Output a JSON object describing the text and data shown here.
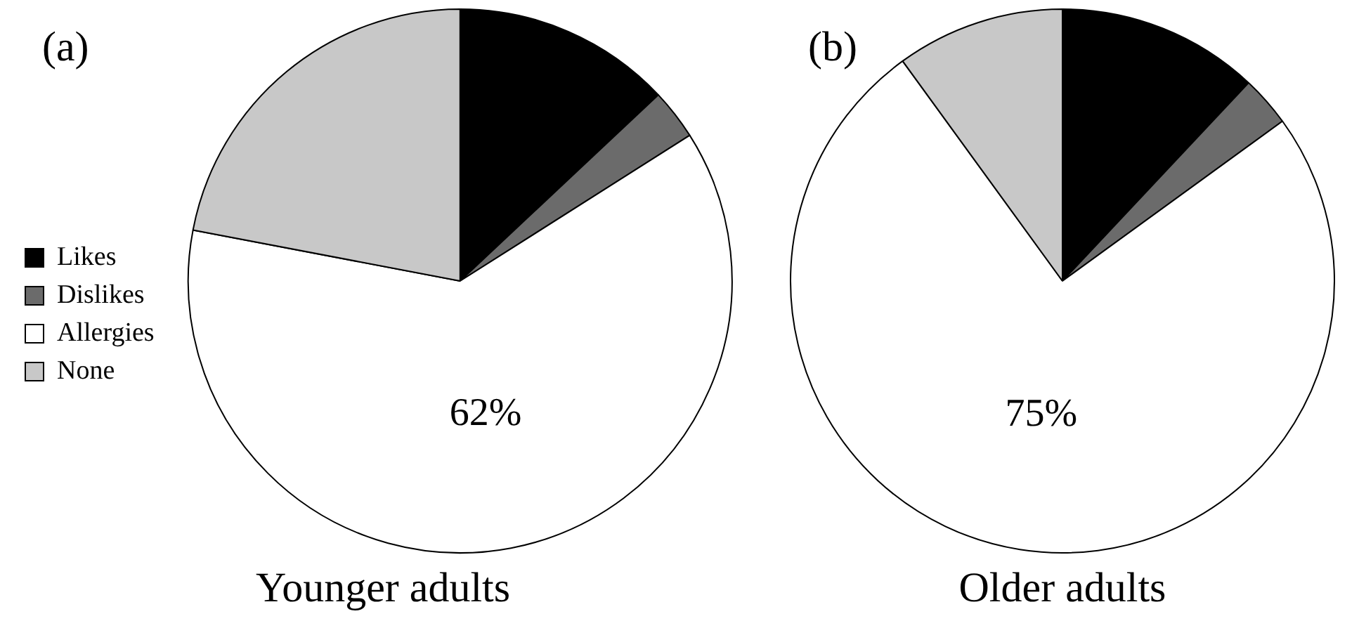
{
  "chart_data": [
    {
      "type": "pie",
      "title": "Younger adults",
      "annotations": [
        "(a)"
      ],
      "categories": [
        "Likes",
        "Dislikes",
        "Allergies",
        "None"
      ],
      "values": [
        13,
        3,
        62,
        22
      ],
      "colors": [
        "#000000",
        "#6b6b6b",
        "#ffffff",
        "#c8c8c8"
      ],
      "value_labels": [
        null,
        null,
        "62%",
        null
      ],
      "legend": "left"
    },
    {
      "type": "pie",
      "title": "Older adults",
      "annotations": [
        "(b)"
      ],
      "categories": [
        null,
        null,
        null,
        null
      ],
      "values": [
        12,
        3,
        75,
        10
      ],
      "colors": [
        "#000000",
        "#6b6b6b",
        "#ffffff",
        "#c8c8c8"
      ],
      "value_labels": [
        null,
        null,
        "75%",
        null
      ]
    }
  ]
}
